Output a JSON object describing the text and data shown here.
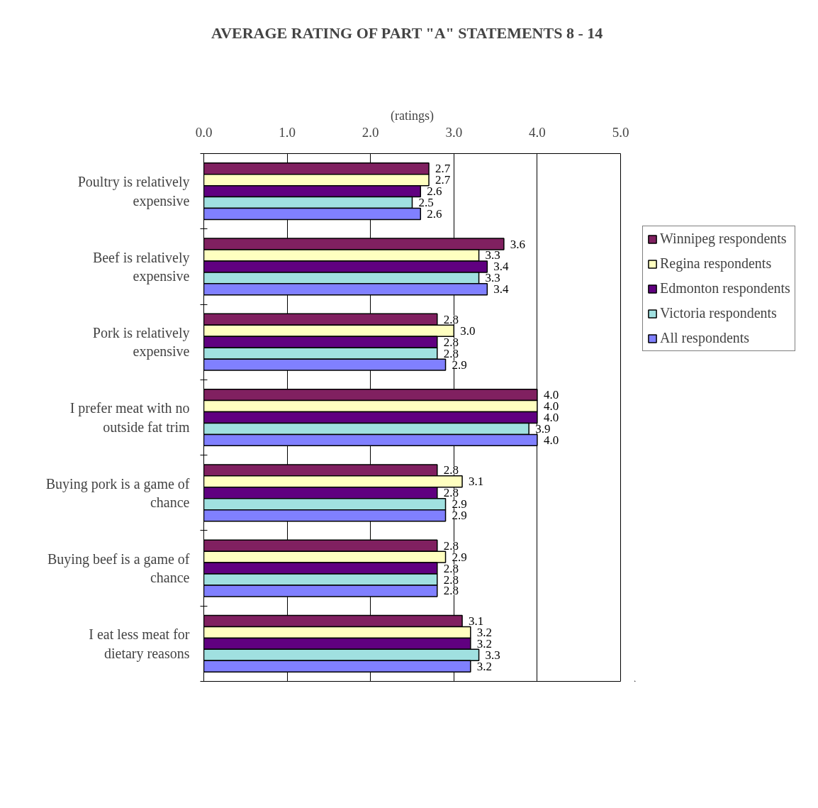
{
  "chart_data": {
    "type": "bar",
    "orientation": "horizontal",
    "title": "AVERAGE RATING OF PART \"A\"  STATEMENTS 8 - 14",
    "xlabel": "(ratings)",
    "categories": [
      "Poultry is relatively expensive",
      "Beef is relatively expensive",
      "Pork is relatively expensive",
      "I prefer meat with no outside fat trim",
      "Buying pork is a game of chance",
      "Buying beef is a game of chance",
      "I eat less meat for dietary reasons"
    ],
    "series": [
      {
        "name": "Winnipeg respondents",
        "color": "#802060",
        "values": [
          2.7,
          3.6,
          2.8,
          4.0,
          2.8,
          2.8,
          3.1
        ],
        "value_labels": [
          "2.7",
          "3.6",
          "2.8",
          "4.0",
          "2.8",
          "2.8",
          "3.1"
        ]
      },
      {
        "name": "Regina respondents",
        "color": "#ffffc0",
        "values": [
          2.7,
          3.3,
          3.0,
          4.0,
          3.1,
          2.9,
          3.2
        ],
        "value_labels": [
          "2.7",
          "3.3",
          "3.0",
          "4.0",
          "3.1",
          "2.9",
          "3.2"
        ]
      },
      {
        "name": "Edmonton respondents",
        "color": "#600080",
        "values": [
          2.6,
          3.4,
          2.8,
          4.0,
          2.8,
          2.8,
          3.2
        ],
        "value_labels": [
          "2.6",
          "3.4",
          "2.8",
          "4.0",
          "2.8",
          "2.8",
          "3.2"
        ]
      },
      {
        "name": "Victoria respondents",
        "color": "#a0e0e0",
        "values": [
          2.5,
          3.3,
          2.8,
          3.9,
          2.9,
          2.8,
          3.3
        ],
        "value_labels": [
          "2.5",
          "3.3",
          "2.8",
          "3.9",
          "2.9",
          "2.8",
          "3.3"
        ]
      },
      {
        "name": "All respondents",
        "color": "#8080ff",
        "values": [
          2.6,
          3.4,
          2.9,
          4.0,
          2.9,
          2.8,
          3.2
        ],
        "value_labels": [
          "2.6",
          "3.4",
          "2.9",
          "4.0",
          "2.9",
          "2.8",
          "3.2"
        ]
      }
    ],
    "xlim": [
      0,
      5
    ],
    "xticks": [
      {
        "value": 0,
        "label": "0.0"
      },
      {
        "value": 1,
        "label": "1.0"
      },
      {
        "value": 2,
        "label": "2.0"
      },
      {
        "value": 3,
        "label": "3.0"
      },
      {
        "value": 4,
        "label": "4.0"
      },
      {
        "value": 5,
        "label": "5.0"
      }
    ],
    "grid": "x",
    "legend": "right"
  }
}
